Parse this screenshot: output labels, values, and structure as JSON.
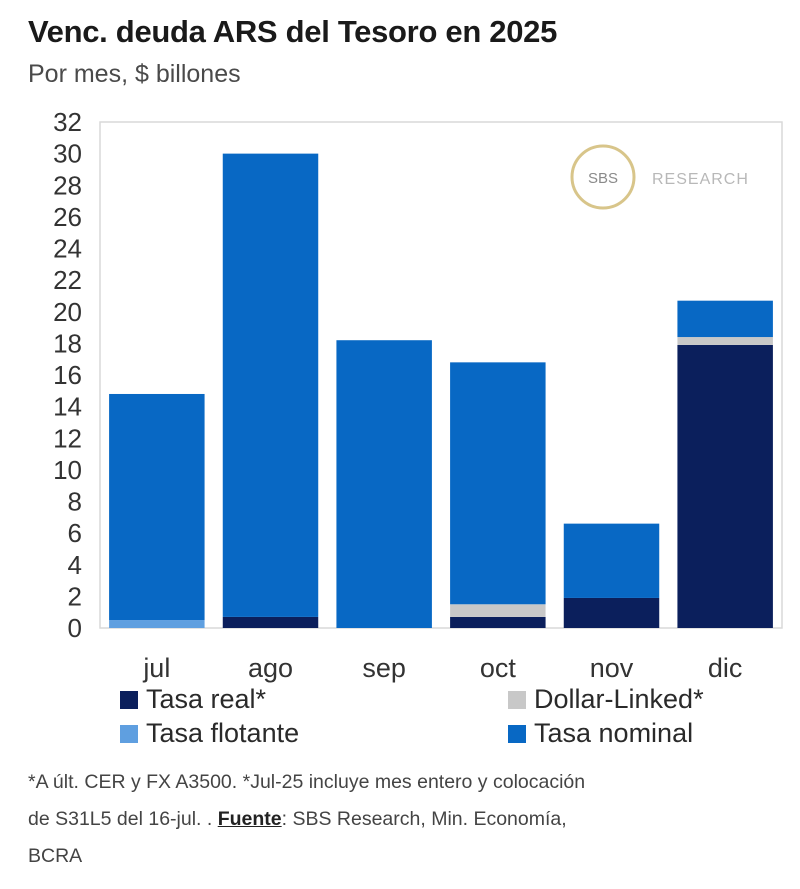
{
  "title": "Venc. deuda ARS del Tesoro en 2025",
  "subtitle": "Por mes, $ billones",
  "logo": {
    "badge": "SBS",
    "text": "RESEARCH"
  },
  "colors": {
    "tasa_real": "#0b1f5c",
    "dollar_linked": "#c8c8c8",
    "tasa_flotante": "#5f9fe0",
    "tasa_nominal": "#0868c4",
    "logo_ring": "#d8c58a"
  },
  "legend": [
    {
      "key": "tasa_real",
      "label": "Tasa real*"
    },
    {
      "key": "dollar_linked",
      "label": "Dollar-Linked*"
    },
    {
      "key": "tasa_flotante",
      "label": "Tasa flotante"
    },
    {
      "key": "tasa_nominal",
      "label": "Tasa nominal"
    }
  ],
  "footnote": {
    "line1": "*A últ. CER y FX A3500. *Jul-25 incluye mes entero y colocación",
    "line2_pre": "de S31L5 del 16-jul. . ",
    "source_label": "Fuente",
    "line2_post": ": SBS Research, Min. Economía,",
    "line3": "BCRA"
  },
  "chart_data": {
    "type": "bar",
    "stacked": true,
    "title": "Venc. deuda ARS del Tesoro en 2025",
    "subtitle": "Por mes, $ billones",
    "categories": [
      "jul",
      "ago",
      "sep",
      "oct",
      "nov",
      "dic"
    ],
    "ylim": [
      0,
      32
    ],
    "yticks": [
      0,
      2,
      4,
      6,
      8,
      10,
      12,
      14,
      16,
      18,
      20,
      22,
      24,
      26,
      28,
      30,
      32
    ],
    "series": [
      {
        "name": "Tasa real*",
        "key": "tasa_real",
        "values": [
          0,
          0.7,
          0,
          0.7,
          1.9,
          17.9
        ]
      },
      {
        "name": "Dollar-Linked*",
        "key": "dollar_linked",
        "values": [
          0,
          0,
          0,
          0.8,
          0,
          0.5
        ]
      },
      {
        "name": "Tasa flotante",
        "key": "tasa_flotante",
        "values": [
          0.5,
          0,
          0,
          0,
          0,
          0
        ]
      },
      {
        "name": "Tasa nominal",
        "key": "tasa_nominal",
        "values": [
          14.3,
          29.3,
          18.2,
          15.3,
          4.7,
          2.3
        ]
      }
    ]
  }
}
